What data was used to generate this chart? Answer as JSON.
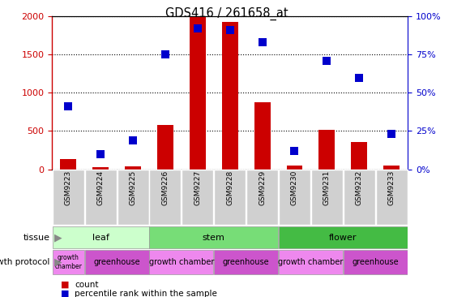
{
  "title": "GDS416 / 261658_at",
  "samples": [
    "GSM9223",
    "GSM9224",
    "GSM9225",
    "GSM9226",
    "GSM9227",
    "GSM9228",
    "GSM9229",
    "GSM9230",
    "GSM9231",
    "GSM9232",
    "GSM9233"
  ],
  "counts": [
    130,
    30,
    40,
    580,
    2000,
    1930,
    880,
    50,
    520,
    360,
    50
  ],
  "percentiles": [
    41,
    10,
    19,
    75,
    92,
    91,
    83,
    12,
    71,
    60,
    23
  ],
  "count_color": "#cc0000",
  "percentile_color": "#0000cc",
  "ylim_left": [
    0,
    2000
  ],
  "ylim_right": [
    0,
    100
  ],
  "yticks_left": [
    0,
    500,
    1000,
    1500,
    2000
  ],
  "ytick_labels_left": [
    "0",
    "500",
    "1000",
    "1500",
    "2000"
  ],
  "yticks_right": [
    0,
    25,
    50,
    75,
    100
  ],
  "ytick_labels_right": [
    "0%",
    "25%",
    "50%",
    "75%",
    "100%"
  ],
  "tissue_groups": [
    {
      "label": "leaf",
      "start": 0,
      "end": 3,
      "color": "#ccffcc"
    },
    {
      "label": "stem",
      "start": 3,
      "end": 7,
      "color": "#77dd77"
    },
    {
      "label": "flower",
      "start": 7,
      "end": 11,
      "color": "#44bb44"
    }
  ],
  "protocol_groups": [
    {
      "label": "growth\nchamber",
      "start": 0,
      "end": 1,
      "color": "#ee88ee"
    },
    {
      "label": "greenhouse",
      "start": 1,
      "end": 3,
      "color": "#cc55cc"
    },
    {
      "label": "growth chamber",
      "start": 3,
      "end": 5,
      "color": "#ee88ee"
    },
    {
      "label": "greenhouse",
      "start": 5,
      "end": 7,
      "color": "#cc55cc"
    },
    {
      "label": "growth chamber",
      "start": 7,
      "end": 9,
      "color": "#ee88ee"
    },
    {
      "label": "greenhouse",
      "start": 9,
      "end": 11,
      "color": "#cc55cc"
    }
  ],
  "bar_width": 0.5,
  "marker_size": 7,
  "xticklabel_bg": "#d0d0d0",
  "plot_bg": "#ffffff",
  "spine_color": "#000000"
}
